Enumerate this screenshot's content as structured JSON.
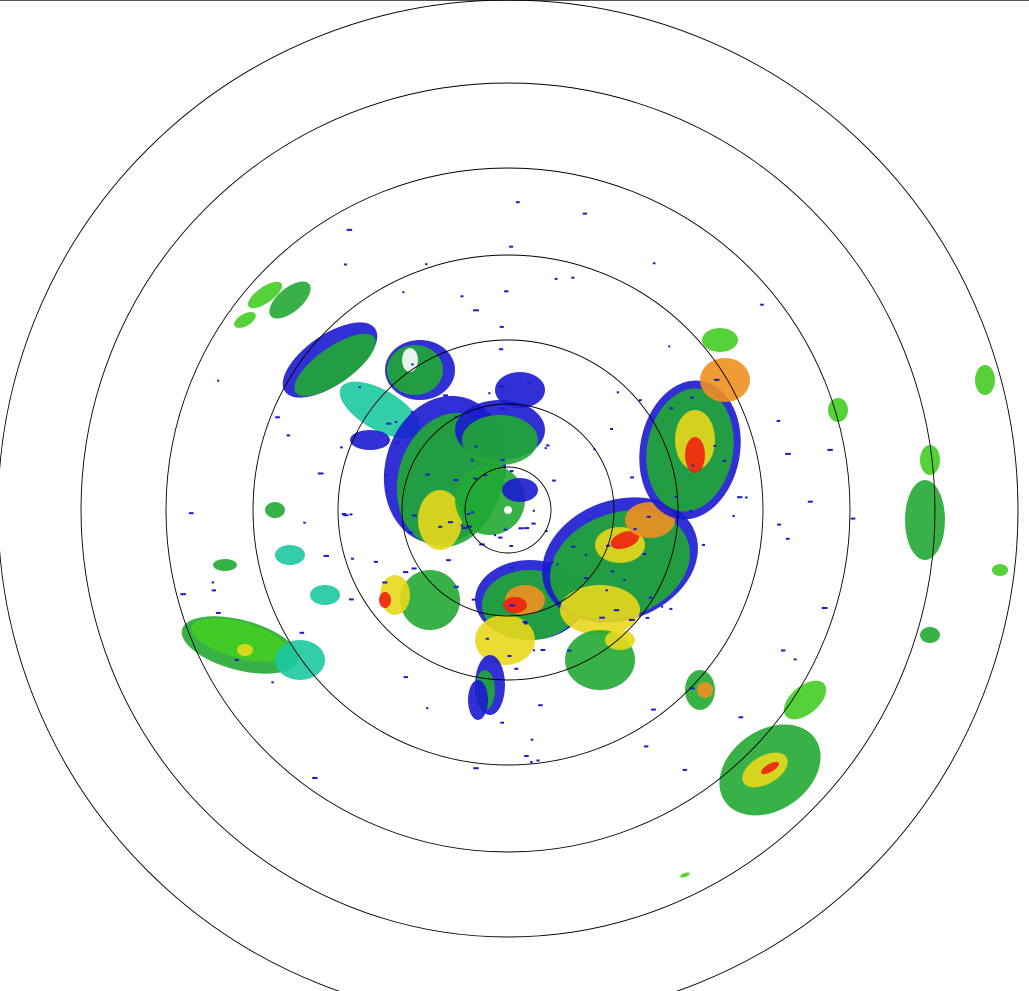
{
  "radar": {
    "range_ring_count": 7,
    "ring_color": "#000000",
    "background": "#ffffff",
    "reflectivity_colors": {
      "weak": "#1a1ad0",
      "light": "#1cc8a0",
      "moderate": "#22aa33",
      "bright_green": "#44cc22",
      "yellow": "#e8d81c",
      "orange": "#f09020",
      "red": "#f02010",
      "core": "#ffffff"
    }
  }
}
